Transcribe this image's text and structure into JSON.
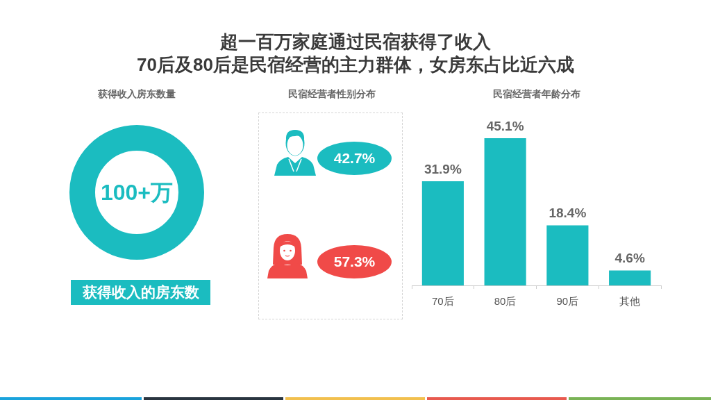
{
  "chart_data": [
    {
      "type": "other",
      "title": "超一百万家庭通过民宿获得了收入",
      "subtitle": "70后及80后是民宿经营的主力群体，女房东占比近六成"
    },
    {
      "type": "other",
      "title": "获得收入房东数量",
      "annotations": [
        "100+万",
        "获得收入的房东数"
      ],
      "color": "#1bbcc0"
    },
    {
      "type": "other",
      "title": "民宿经营者性别分布",
      "categories": [
        null,
        null
      ],
      "value_labels": [
        "42.7%",
        "57.3%"
      ],
      "colors": [
        "#1bbcc0",
        "#f04a48"
      ]
    },
    {
      "type": "bar",
      "title": "民宿经营者年龄分布",
      "categories": [
        "70后",
        "80后",
        "90后",
        "其他"
      ],
      "values": [
        31.9,
        45.1,
        18.4,
        4.6
      ],
      "value_labels": [
        "31.9%",
        "45.1%",
        "18.4%",
        "4.6%"
      ],
      "color": "#1bbcc0",
      "tick_labels": "x"
    }
  ]
}
